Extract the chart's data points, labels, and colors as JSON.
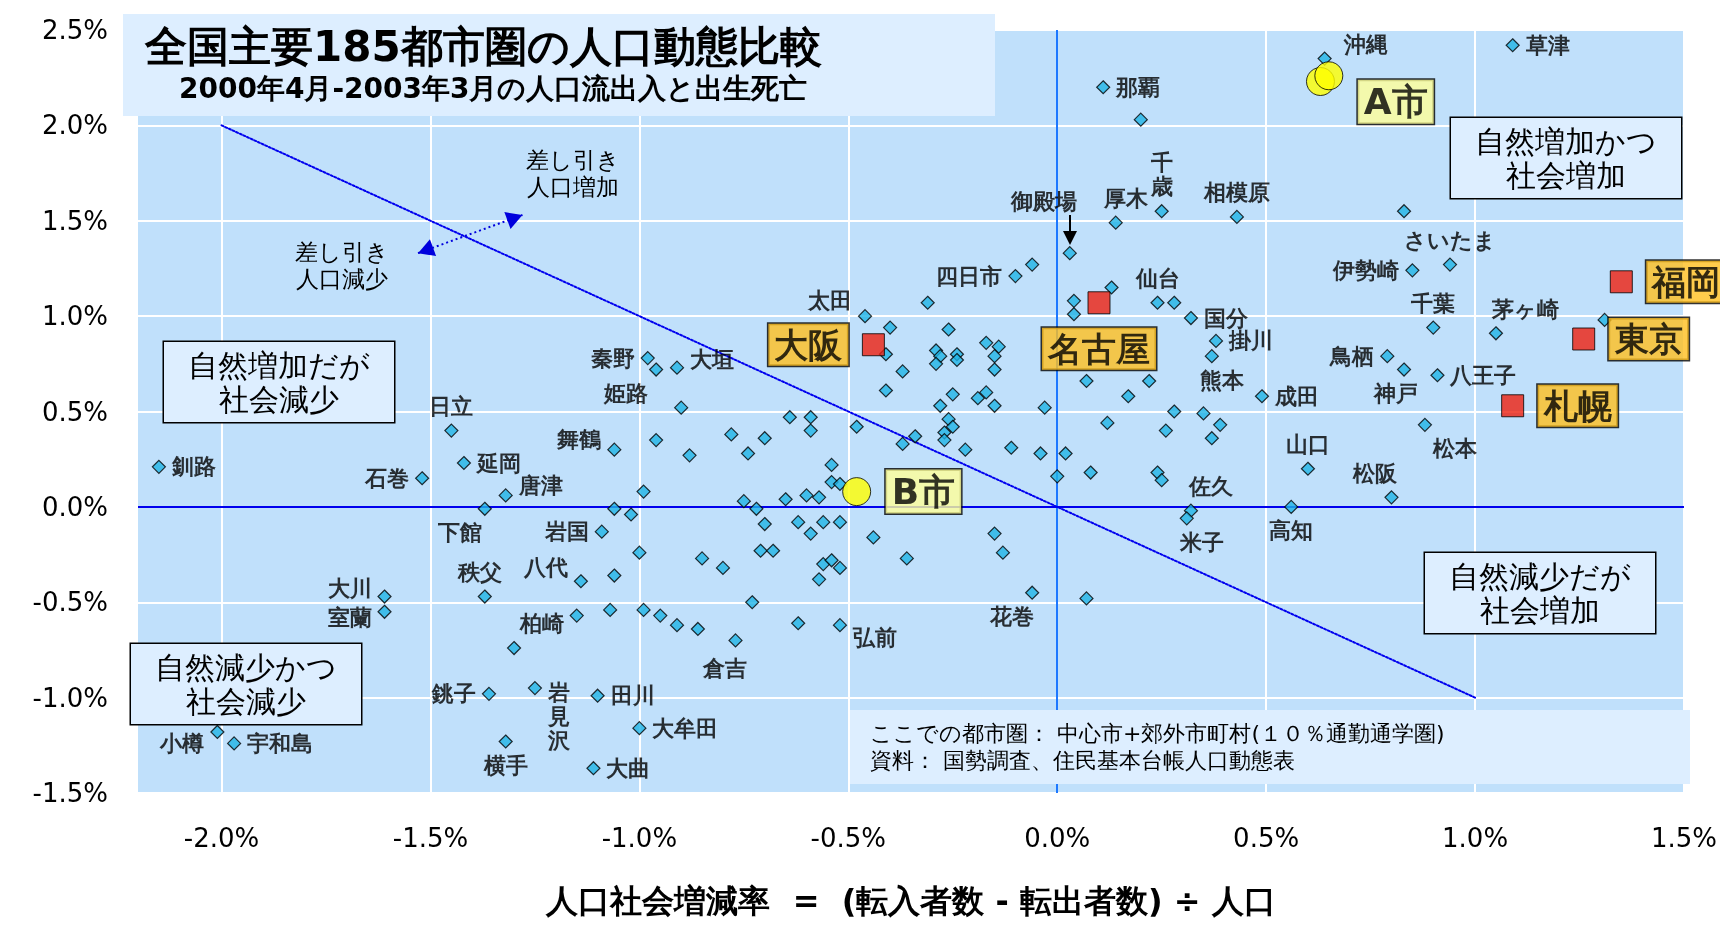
{
  "chart_data": {
    "type": "scatter",
    "title": "全国主要185都市圏の人口動態比較",
    "subtitle": "2000年4月-2003年3月の人口流出入と出生死亡",
    "xlabel": "人口社会増減率  =  (転入者数 - 転出者数) ÷ 人口",
    "xlim": [
      -2.2,
      1.5
    ],
    "ylim": [
      -1.5,
      2.5
    ],
    "xticks": [
      {
        "value": -2.0,
        "label": "-2.0%"
      },
      {
        "value": -1.5,
        "label": "-1.5%"
      },
      {
        "value": -1.0,
        "label": "-1.0%"
      },
      {
        "value": -0.5,
        "label": "-0.5%"
      },
      {
        "value": 0,
        "label": "0.0%"
      },
      {
        "value": 0.5,
        "label": "0.5%"
      },
      {
        "value": 1.0,
        "label": "1.0%"
      },
      {
        "value": 1.5,
        "label": "1.5%"
      }
    ],
    "yticks": [
      {
        "value": -1.5,
        "label": "-1.5%"
      },
      {
        "value": -1.0,
        "label": "-1.0%"
      },
      {
        "value": -0.5,
        "label": "-0.5%"
      },
      {
        "value": 0,
        "label": "0.0%"
      },
      {
        "value": 0.5,
        "label": "0.5%"
      },
      {
        "value": 1.0,
        "label": "1.0%"
      },
      {
        "value": 1.5,
        "label": "1.5%"
      },
      {
        "value": 2.0,
        "label": "2.0%"
      },
      {
        "value": 2.5,
        "label": "2.5%"
      }
    ],
    "grid": true,
    "ref_lines": [
      {
        "axis": "x",
        "value": 0,
        "color": "#1e78ff"
      },
      {
        "axis": "y",
        "value": 0,
        "color": "#0000ee"
      }
    ],
    "series": [
      {
        "color": "#1fb4e6",
        "marker": "diamond",
        "x": [
          0.64,
          1.09,
          0.11,
          0.03,
          0.25,
          0.14,
          0.43,
          -0.1,
          0.24,
          0.32,
          -0.46,
          0.94,
          0.85,
          0.9,
          1.05,
          0.79,
          0.83,
          0.91,
          0.38,
          0.37,
          0.49,
          0.6,
          0.8,
          0.88,
          0.56,
          0.32,
          0.31,
          -0.06,
          -0.52,
          -0.77,
          -2.15,
          -1.52,
          -1.45,
          -1.42,
          -1.32,
          -1.37,
          -1.06,
          -0.98,
          -0.96,
          -0.91,
          -1.09,
          -1.14,
          -1.37,
          -1.61,
          -1.61,
          -1.15,
          -1.36,
          -1.25,
          -1.1,
          -1.0,
          -1.32,
          -1.11,
          -2.01,
          -1.97,
          0.2,
          -0.06,
          -0.31,
          -0.4,
          -0.41,
          -0.26,
          -0.17,
          -0.14,
          -0.29,
          -0.28,
          -0.29,
          -0.24,
          -0.24,
          -0.15,
          -0.15,
          -0.37,
          -0.41,
          -0.25,
          -0.19,
          -0.17,
          -0.28,
          -0.15,
          -0.03,
          -0.9,
          -0.64,
          -0.59,
          -0.59,
          -0.48,
          0.04,
          0.04,
          0.13,
          0.28,
          0.07,
          0.22,
          0.17,
          0.28,
          0.12,
          0.83,
          1.31,
          0.35,
          0.39,
          0.37,
          -0.96,
          -0.88,
          -0.78,
          -0.74,
          -0.7,
          -0.54,
          -0.54,
          -0.52,
          -0.99,
          -0.75,
          -0.72,
          -0.65,
          -0.6,
          -0.57,
          -0.7,
          -0.62,
          -0.56,
          -0.52,
          -0.59,
          -0.71,
          -0.68,
          -0.85,
          -0.8,
          -0.56,
          -0.54,
          -0.52,
          -0.57,
          -0.73,
          -0.99,
          -0.95,
          -0.91,
          -0.86,
          -0.62,
          -0.44,
          -0.36,
          -0.37,
          -0.34,
          -0.26,
          -0.25,
          -0.27,
          -0.27,
          -0.22,
          -0.11,
          -0.04,
          0.02,
          0.0,
          0.08,
          -0.15,
          -0.13,
          0.07,
          0.26,
          0.24,
          0.25,
          -1.06,
          -1.02,
          -1.0,
          -1.06,
          -1.07,
          -1.3
        ],
        "values": [
          2.35,
          2.42,
          2.2,
          1.33,
          1.55,
          1.49,
          1.52,
          1.21,
          1.07,
          0.99,
          1.0,
          1.27,
          1.24,
          0.94,
          0.91,
          0.79,
          0.72,
          0.69,
          0.87,
          0.79,
          0.58,
          0.2,
          0.05,
          0.43,
          0.0,
          -0.02,
          -0.06,
          -0.45,
          -0.62,
          -0.7,
          0.21,
          0.15,
          0.4,
          0.23,
          0.06,
          -0.01,
          0.3,
          0.78,
          0.72,
          0.73,
          -0.13,
          -0.39,
          -0.47,
          -0.47,
          -0.55,
          -0.57,
          -0.98,
          -0.95,
          -0.99,
          -1.16,
          -1.23,
          -1.37,
          -1.18,
          -1.24,
          2.03,
          1.27,
          1.07,
          0.94,
          0.8,
          0.93,
          0.86,
          0.84,
          0.82,
          0.79,
          0.75,
          0.8,
          0.77,
          0.79,
          0.72,
          0.71,
          0.61,
          0.59,
          0.57,
          0.6,
          0.53,
          0.53,
          0.52,
          0.52,
          0.47,
          0.47,
          0.4,
          0.42,
          1.08,
          1.01,
          1.15,
          1.07,
          0.66,
          0.66,
          0.58,
          0.5,
          0.44,
          1.55,
          0.98,
          0.49,
          0.43,
          0.36,
          0.35,
          0.27,
          0.38,
          0.28,
          0.36,
          0.22,
          0.13,
          0.12,
          0.08,
          0.03,
          -0.01,
          0.04,
          0.06,
          0.05,
          -0.09,
          -0.08,
          -0.08,
          -0.08,
          -0.14,
          -0.23,
          -0.23,
          -0.27,
          -0.32,
          -0.3,
          -0.28,
          -0.32,
          -0.38,
          -0.5,
          -0.54,
          -0.57,
          -0.62,
          -0.64,
          -0.61,
          -0.16,
          -0.27,
          0.33,
          0.37,
          0.46,
          0.42,
          0.39,
          0.35,
          0.3,
          0.31,
          0.28,
          0.28,
          0.16,
          0.18,
          -0.14,
          -0.24,
          -0.48,
          0.4,
          0.18,
          0.14,
          -0.01,
          -0.04,
          -0.24,
          -0.36,
          -0.54,
          -0.74
        ]
      },
      {
        "color": "#ee2010",
        "marker": "square",
        "x": [
          -0.44,
          0.1,
          1.35,
          1.26,
          1.09
        ],
        "values": [
          0.85,
          1.07,
          1.18,
          0.88,
          0.53
        ]
      },
      {
        "color": "#ffff00",
        "marker": "circle",
        "x": [
          0.63,
          0.65,
          -0.48
        ],
        "values": [
          2.23,
          2.26,
          0.08
        ]
      },
      {
        "type": "line",
        "color": "#0000ee",
        "marker": "none",
        "line_style": "dotted",
        "x": [
          -2.0,
          1.0
        ],
        "values": [
          2.0,
          -1.0
        ]
      }
    ],
    "annotations": [
      "自然増加だが社会減少",
      "自然増加かつ社会増加",
      "自然減少だが社会増加",
      "自然減少かつ社会減少",
      "差し引き人口増加",
      "差し引き人口減少",
      "ここでの都市圏： 中心市+郊外市町村(１０％通勤通学圏)\n資料： 国勢調査、住民基本台帳人口動態表",
      {
        "text": "沖縄",
        "x": 0.64,
        "y": 2.35
      },
      {
        "text": "草津",
        "x": 1.09,
        "y": 2.42
      },
      {
        "text": "那覇",
        "x": 0.11,
        "y": 2.2
      },
      {
        "text": "御殿場",
        "x": 0.03,
        "y": 1.33
      },
      {
        "text": "千歳",
        "x": 0.25,
        "y": 1.55
      },
      {
        "text": "厚木",
        "x": 0.14,
        "y": 1.49
      },
      {
        "text": "相模原",
        "x": 0.43,
        "y": 1.52
      },
      {
        "text": "四日市",
        "x": -0.1,
        "y": 1.21
      },
      {
        "text": "仙台",
        "x": 0.24,
        "y": 1.07
      },
      {
        "text": "国分",
        "x": 0.32,
        "y": 0.99
      },
      {
        "text": "太田",
        "x": -0.46,
        "y": 1.0
      },
      {
        "text": "大阪",
        "x": -0.44,
        "y": 0.85
      },
      {
        "text": "名古屋",
        "x": 0.1,
        "y": 1.07
      },
      {
        "text": "福岡",
        "x": 1.35,
        "y": 1.18
      },
      {
        "text": "東京",
        "x": 1.26,
        "y": 0.88
      },
      {
        "text": "札幌",
        "x": 1.09,
        "y": 0.53
      },
      {
        "text": "A市",
        "x": 0.65,
        "y": 2.26
      },
      {
        "text": "B市",
        "x": -0.48,
        "y": 0.08
      },
      {
        "text": "さいたま",
        "x": 0.94,
        "y": 1.27
      },
      {
        "text": "伊勢崎",
        "x": 0.85,
        "y": 1.24
      },
      {
        "text": "千葉",
        "x": 0.9,
        "y": 0.94
      },
      {
        "text": "茅ヶ崎",
        "x": 1.05,
        "y": 0.91
      },
      {
        "text": "鳥栖",
        "x": 0.79,
        "y": 0.79
      },
      {
        "text": "神戸",
        "x": 0.83,
        "y": 0.72
      },
      {
        "text": "八王子",
        "x": 0.91,
        "y": 0.69
      },
      {
        "text": "掛川",
        "x": 0.38,
        "y": 0.87
      },
      {
        "text": "熊本",
        "x": 0.37,
        "y": 0.79
      },
      {
        "text": "成田",
        "x": 0.49,
        "y": 0.58
      },
      {
        "text": "山口",
        "x": 0.6,
        "y": 0.2
      },
      {
        "text": "松阪",
        "x": 0.8,
        "y": 0.05
      },
      {
        "text": "松本",
        "x": 0.88,
        "y": 0.43
      },
      {
        "text": "高知",
        "x": 0.56,
        "y": 0.0
      },
      {
        "text": "佐久",
        "x": 0.32,
        "y": -0.02
      },
      {
        "text": "米子",
        "x": 0.31,
        "y": -0.06
      },
      {
        "text": "花巻",
        "x": -0.06,
        "y": -0.45
      },
      {
        "text": "弘前",
        "x": -0.52,
        "y": -0.62
      },
      {
        "text": "倉吉",
        "x": -0.77,
        "y": -0.7
      },
      {
        "text": "釧路",
        "x": -2.15,
        "y": 0.21
      },
      {
        "text": "石巻",
        "x": -1.52,
        "y": 0.15
      },
      {
        "text": "日立",
        "x": -1.45,
        "y": 0.4
      },
      {
        "text": "延岡",
        "x": -1.42,
        "y": 0.23
      },
      {
        "text": "唐津",
        "x": -1.32,
        "y": 0.06
      },
      {
        "text": "下館",
        "x": -1.37,
        "y": -0.01
      },
      {
        "text": "舞鶴",
        "x": -1.06,
        "y": 0.3
      },
      {
        "text": "秦野",
        "x": -0.98,
        "y": 0.78
      },
      {
        "text": "姫路",
        "x": -0.96,
        "y": 0.72
      },
      {
        "text": "大垣",
        "x": -0.91,
        "y": 0.73
      },
      {
        "text": "岩国",
        "x": -1.09,
        "y": -0.13
      },
      {
        "text": "八代",
        "x": -1.14,
        "y": -0.39
      },
      {
        "text": "秩父",
        "x": -1.37,
        "y": -0.47
      },
      {
        "text": "大川",
        "x": -1.61,
        "y": -0.47
      },
      {
        "text": "室蘭",
        "x": -1.61,
        "y": -0.55
      },
      {
        "text": "柏崎",
        "x": -1.15,
        "y": -0.57
      },
      {
        "text": "銚子",
        "x": -1.36,
        "y": -0.98
      },
      {
        "text": "岩見沢",
        "x": -1.25,
        "y": -0.95
      },
      {
        "text": "田川",
        "x": -1.1,
        "y": -0.99
      },
      {
        "text": "大牟田",
        "x": -1.0,
        "y": -1.16
      },
      {
        "text": "横手",
        "x": -1.32,
        "y": -1.23
      },
      {
        "text": "大曲",
        "x": -1.11,
        "y": -1.37
      },
      {
        "text": "小樽",
        "x": -2.01,
        "y": -1.18
      },
      {
        "text": "宇和島",
        "x": -1.97,
        "y": -1.24
      }
    ]
  }
}
